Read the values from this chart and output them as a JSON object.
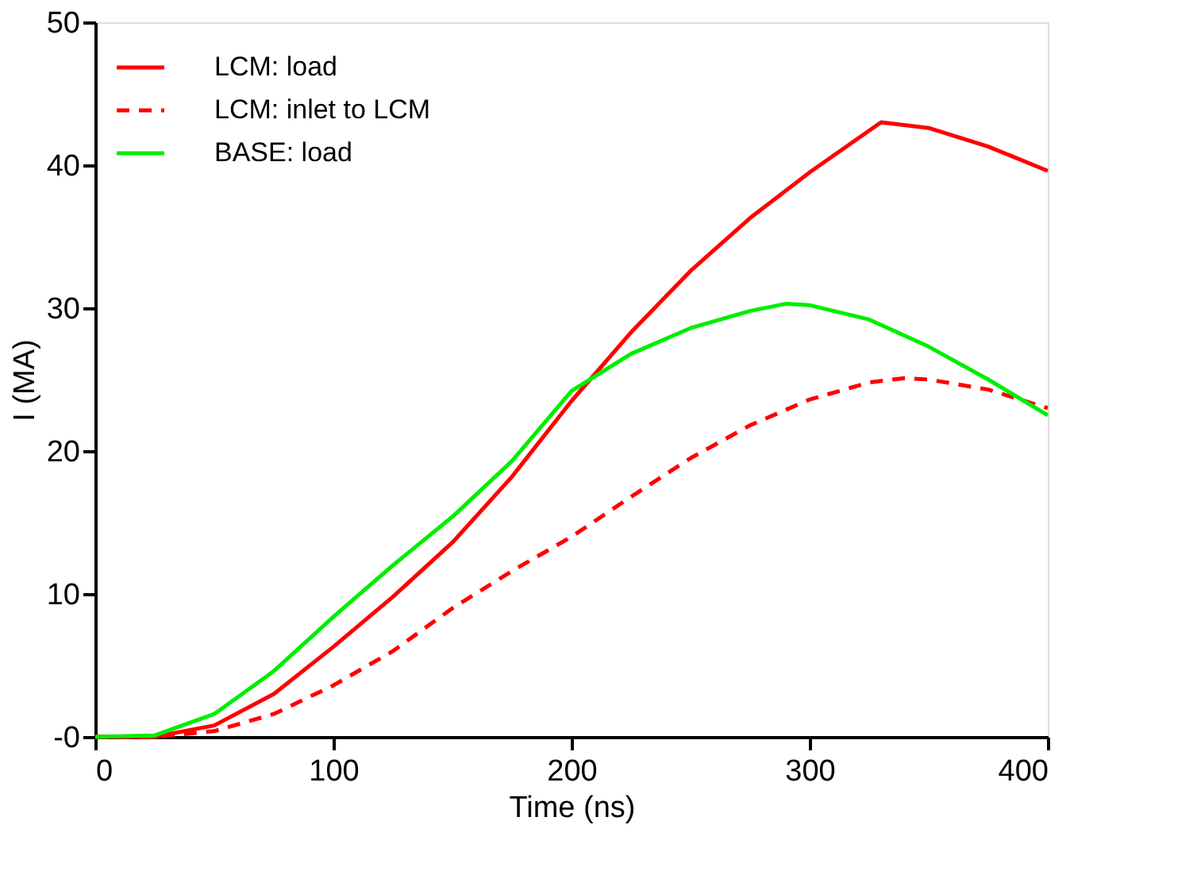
{
  "chart_data": {
    "type": "line",
    "xlabel": "Time (ns)",
    "ylabel": "I (MA)",
    "xlim": [
      0,
      400
    ],
    "xticks": [
      0,
      100,
      200,
      300,
      400
    ],
    "ylim": [
      0,
      50
    ],
    "yticks": [
      {
        "value": 0,
        "label": "-0"
      },
      10,
      20,
      30,
      40,
      50
    ],
    "grid": false,
    "legend": "top left",
    "marker": "none",
    "series": [
      {
        "name": "LCM: load",
        "color": "#ff0000",
        "line_style": "solid",
        "x": [
          0,
          25,
          50,
          75,
          100,
          125,
          150,
          175,
          200,
          225,
          250,
          275,
          300,
          330,
          350,
          375,
          400
        ],
        "values": [
          0,
          0,
          0.8,
          3.0,
          6.3,
          9.8,
          13.6,
          18.2,
          23.5,
          28.3,
          32.6,
          36.3,
          39.5,
          43.0,
          42.6,
          41.3,
          39.6
        ]
      },
      {
        "name": "LCM: inlet to LCM",
        "color": "#ff0000",
        "line_style": "dashed",
        "x": [
          0,
          25,
          50,
          75,
          100,
          125,
          150,
          175,
          200,
          225,
          250,
          275,
          300,
          325,
          340,
          350,
          375,
          400
        ],
        "values": [
          0,
          0,
          0.4,
          1.6,
          3.6,
          6.0,
          9.0,
          11.6,
          14.0,
          16.8,
          19.5,
          21.8,
          23.6,
          24.8,
          25.1,
          25.0,
          24.3,
          23.0
        ]
      },
      {
        "name": "BASE: load",
        "color": "#00ee00",
        "line_style": "solid",
        "x": [
          0,
          25,
          50,
          75,
          100,
          125,
          150,
          175,
          200,
          225,
          250,
          275,
          290,
          300,
          325,
          350,
          375,
          400
        ],
        "values": [
          0,
          0.1,
          1.6,
          4.6,
          8.4,
          12.0,
          15.4,
          19.3,
          24.2,
          26.8,
          28.6,
          29.8,
          30.3,
          30.2,
          29.2,
          27.3,
          25.0,
          22.5
        ]
      }
    ]
  }
}
